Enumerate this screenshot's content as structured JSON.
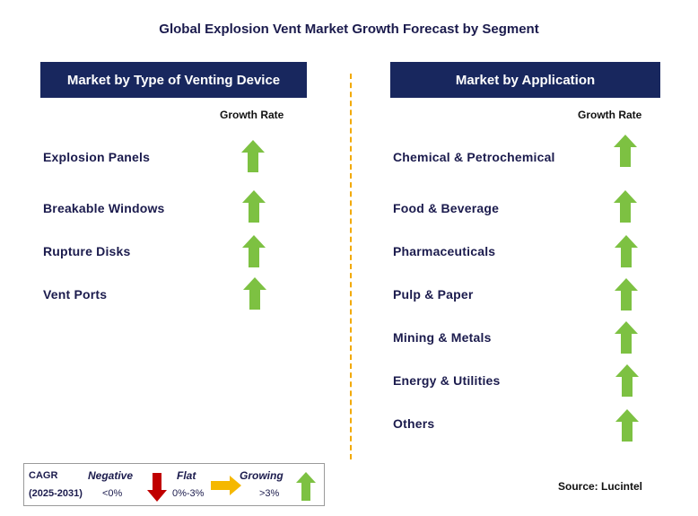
{
  "title": "Global Explosion Vent Market Growth Forecast by Segment",
  "left_panel": {
    "header": "Market by Type of Venting Device",
    "column_label": "Growth Rate",
    "rows": [
      {
        "label": "Explosion Panels",
        "trend": "growing"
      },
      {
        "label": "Breakable Windows",
        "trend": "growing"
      },
      {
        "label": "Rupture Disks",
        "trend": "growing"
      },
      {
        "label": "Vent Ports",
        "trend": "growing"
      }
    ]
  },
  "right_panel": {
    "header": "Market by Application",
    "column_label": "Growth Rate",
    "rows": [
      {
        "label": "Chemical & Petrochemical",
        "trend": "growing"
      },
      {
        "label": "Food & Beverage",
        "trend": "growing"
      },
      {
        "label": "Pharmaceuticals",
        "trend": "growing"
      },
      {
        "label": "Pulp & Paper",
        "trend": "growing"
      },
      {
        "label": "Mining & Metals",
        "trend": "growing"
      },
      {
        "label": "Energy & Utilities",
        "trend": "growing"
      },
      {
        "label": "Others",
        "trend": "growing"
      }
    ]
  },
  "legend": {
    "cagr_label": "CAGR",
    "period": "(2025-2031)",
    "negative": {
      "label": "Negative",
      "range": "<0%",
      "color": "#c00000"
    },
    "flat": {
      "label": "Flat",
      "range": "0%-3%",
      "color": "#f5b800"
    },
    "growing": {
      "label": "Growing",
      "range": ">3%",
      "color": "#7dc142"
    }
  },
  "source": "Source: Lucintel",
  "colors": {
    "header_bg": "#18275e",
    "divider": "#f2a900",
    "arrow_up": "#7dc142"
  }
}
